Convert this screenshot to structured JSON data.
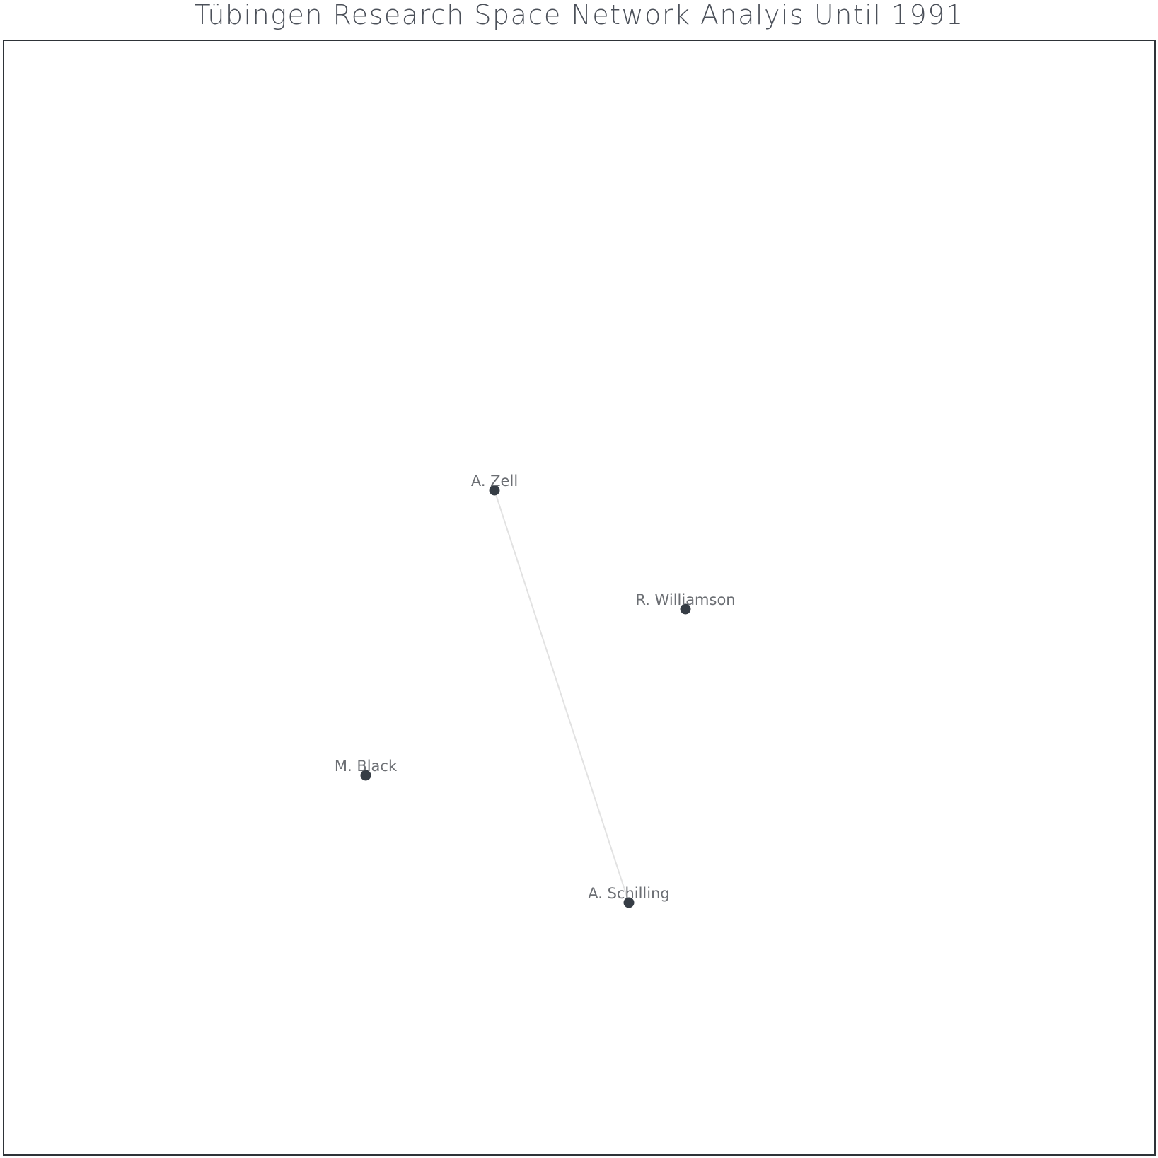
{
  "title": "Tübingen Research Space Network Analyis Until 1991",
  "colors": {
    "node": "#363d45",
    "edge": "#e2e2e2",
    "label": "#6b6e73",
    "frame": "#2e3338",
    "title": "#4b5059"
  },
  "network": {
    "nodes": [
      {
        "id": "zell",
        "label": "A. Zell"
      },
      {
        "id": "williamson",
        "label": "R. Williamson"
      },
      {
        "id": "black",
        "label": "M. Black"
      },
      {
        "id": "schilling",
        "label": "A. Schilling"
      }
    ],
    "edges": [
      {
        "source": "zell",
        "target": "schilling"
      }
    ]
  }
}
